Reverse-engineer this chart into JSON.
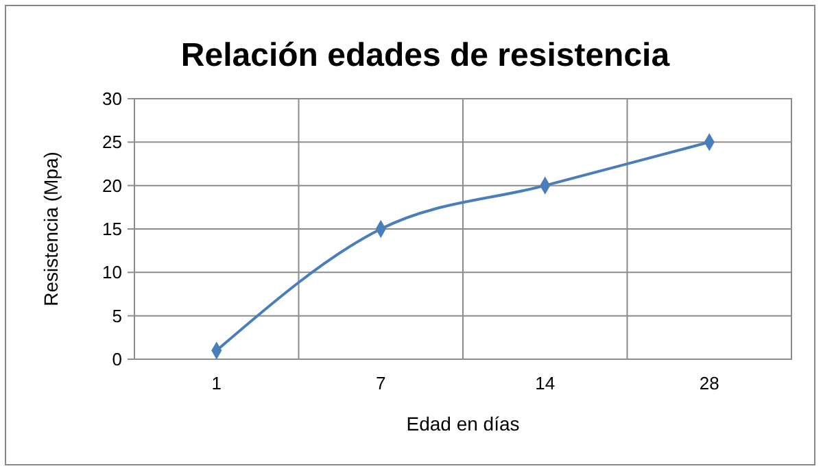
{
  "chart_data": {
    "type": "line",
    "title": "Relación edades de resistencia",
    "xlabel": "Edad en días",
    "ylabel": "Resistencia (Mpa)",
    "categories": [
      "1",
      "7",
      "14",
      "28"
    ],
    "series": [
      {
        "color": "#4a7ebb",
        "values": [
          1,
          15,
          20,
          25
        ]
      }
    ],
    "ylim": [
      0,
      30
    ],
    "yticks": [
      0,
      5,
      10,
      15,
      20,
      25,
      30
    ],
    "grid": true,
    "marker": "diamond",
    "line_style": "solid"
  }
}
